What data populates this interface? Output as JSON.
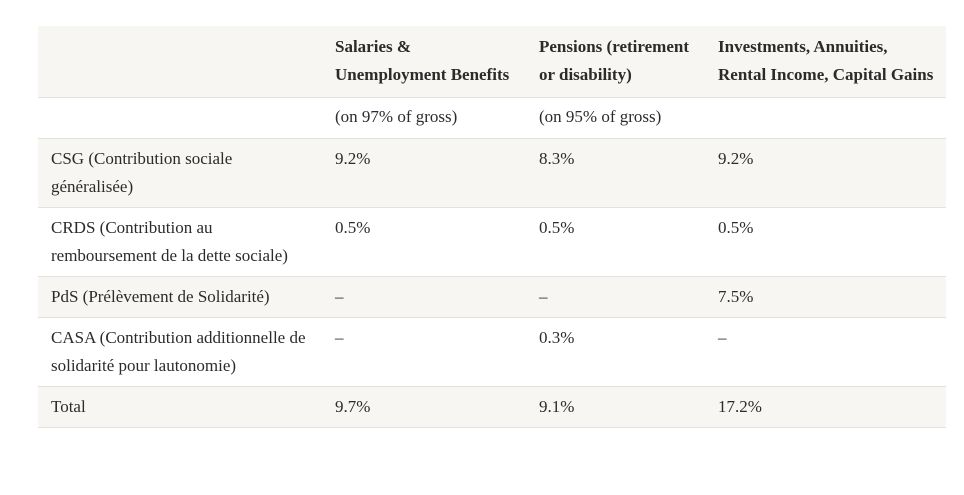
{
  "table": {
    "headers": [
      "",
      "Salaries & Unemployment Benefits",
      "Pensions (retirement or disability)",
      "Investments, Annuities, Rental Income, Capital Gains"
    ],
    "subheader": [
      "",
      "(on 97% of gross)",
      "(on 95% of gross)",
      ""
    ],
    "rows": [
      [
        "CSG (Contribution sociale généralisée)",
        "9.2%",
        "8.3%",
        "9.2%"
      ],
      [
        "CRDS (Contribution au remboursement de la dette sociale)",
        "0.5%",
        "0.5%",
        "0.5%"
      ],
      [
        "PdS (Prélèvement de Solidarité)",
        "–",
        "–",
        "7.5%"
      ],
      [
        "CASA (Contribution additionnelle de solidarité pour lautonomie)",
        "–",
        "0.3%",
        "–"
      ],
      [
        "Total",
        "9.7%",
        "9.1%",
        "17.2%"
      ]
    ]
  }
}
